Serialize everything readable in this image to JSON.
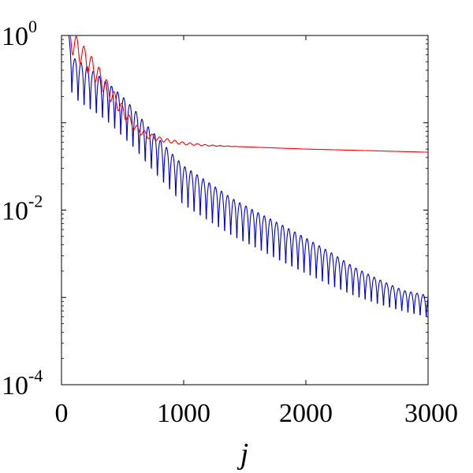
{
  "chart_data": {
    "type": "line",
    "xlabel": "j",
    "ylabel": "",
    "xlim": [
      0,
      3000
    ],
    "ylim": [
      0.0001,
      1
    ],
    "yscale": "log",
    "grid": false,
    "x_ticks": [
      {
        "value": 0,
        "label": "0"
      },
      {
        "value": 1000,
        "label": "1000"
      },
      {
        "value": 2000,
        "label": "2000"
      },
      {
        "value": 3000,
        "label": "3000"
      }
    ],
    "y_ticks": [
      {
        "value": 1,
        "base": "10",
        "exp": "0"
      },
      {
        "value": 0.01,
        "base": "10",
        "exp": "-2"
      },
      {
        "value": 0.0001,
        "base": "10",
        "exp": "-4"
      }
    ],
    "series": [
      {
        "color": "#ff0000",
        "period": 62,
        "x": [
          60,
          100,
          200,
          300,
          400,
          500,
          600,
          700,
          800,
          1000,
          1200,
          1500,
          2000,
          2500,
          3000
        ],
        "envelope": [
          1.0,
          0.82,
          0.55,
          0.36,
          0.22,
          0.14,
          0.088,
          0.072,
          0.065,
          0.058,
          0.055,
          0.053,
          0.05,
          0.048,
          0.046
        ],
        "ripple": [
          0.3,
          0.3,
          0.28,
          0.25,
          0.2,
          0.15,
          0.1,
          0.08,
          0.06,
          0.035,
          0.015,
          0.0,
          0.0,
          0.0,
          0.0
        ]
      },
      {
        "color": "#0000cc",
        "period": 50,
        "x": [
          60,
          100,
          200,
          300,
          400,
          500,
          600,
          700,
          800,
          900,
          1000,
          1200,
          1400,
          1600,
          1800,
          2000,
          2200,
          2400,
          2600,
          2800,
          3000
        ],
        "peaks": [
          1.0,
          0.55,
          0.45,
          0.35,
          0.27,
          0.2,
          0.14,
          0.093,
          0.065,
          0.045,
          0.032,
          0.021,
          0.0135,
          0.0095,
          0.0068,
          0.0048,
          0.0033,
          0.0022,
          0.0016,
          0.0012,
          0.00105
        ],
        "troughs": [
          0.18,
          0.14,
          0.11,
          0.09,
          0.07,
          0.05,
          0.037,
          0.025,
          0.017,
          0.012,
          0.0083,
          0.0055,
          0.0037,
          0.0027,
          0.0019,
          0.0014,
          0.00105,
          0.00082,
          0.00068,
          0.00058,
          0.0005
        ]
      }
    ]
  }
}
